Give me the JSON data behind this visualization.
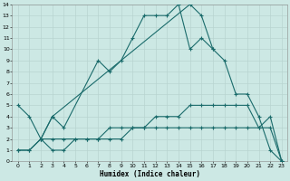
{
  "xlabel": "Humidex (Indice chaleur)",
  "xlim": [
    -0.5,
    23.5
  ],
  "ylim": [
    0,
    14
  ],
  "xticks": [
    0,
    1,
    2,
    3,
    4,
    5,
    6,
    7,
    8,
    9,
    10,
    11,
    12,
    13,
    14,
    15,
    16,
    17,
    18,
    19,
    20,
    21,
    22,
    23
  ],
  "yticks": [
    0,
    1,
    2,
    3,
    4,
    5,
    6,
    7,
    8,
    9,
    10,
    11,
    12,
    13,
    14
  ],
  "bg_color": "#cce8e4",
  "plot_bg": "#cce8e4",
  "grid_color": "#b8d4d0",
  "line_color": "#1a6b6b",
  "lines": [
    {
      "x": [
        0,
        1,
        2,
        3,
        4,
        7,
        8,
        9,
        10,
        11,
        12,
        13,
        14,
        15,
        16,
        17
      ],
      "y": [
        5,
        4,
        2,
        4,
        3,
        9,
        8,
        9,
        11,
        13,
        13,
        13,
        14,
        10,
        11,
        10
      ]
    },
    {
      "x": [
        2,
        3,
        15,
        16,
        17,
        18,
        19,
        20,
        21,
        22,
        23
      ],
      "y": [
        2,
        4,
        14,
        13,
        10,
        9,
        6,
        6,
        4,
        1,
        0
      ]
    },
    {
      "x": [
        0,
        1,
        2,
        3,
        4,
        5,
        6,
        7,
        8,
        9,
        10,
        11,
        12,
        13,
        14,
        15,
        16,
        17,
        18,
        19,
        20,
        21,
        22,
        23
      ],
      "y": [
        1,
        1,
        2,
        1,
        1,
        2,
        2,
        2,
        3,
        3,
        3,
        3,
        4,
        4,
        4,
        5,
        5,
        5,
        5,
        5,
        5,
        3,
        4,
        0
      ]
    },
    {
      "x": [
        0,
        1,
        2,
        3,
        4,
        5,
        6,
        7,
        8,
        9,
        10,
        11,
        12,
        13,
        14,
        15,
        16,
        17,
        18,
        19,
        20,
        21,
        22,
        23
      ],
      "y": [
        1,
        1,
        2,
        2,
        2,
        2,
        2,
        2,
        2,
        2,
        3,
        3,
        3,
        3,
        3,
        3,
        3,
        3,
        3,
        3,
        3,
        3,
        3,
        0
      ]
    }
  ]
}
